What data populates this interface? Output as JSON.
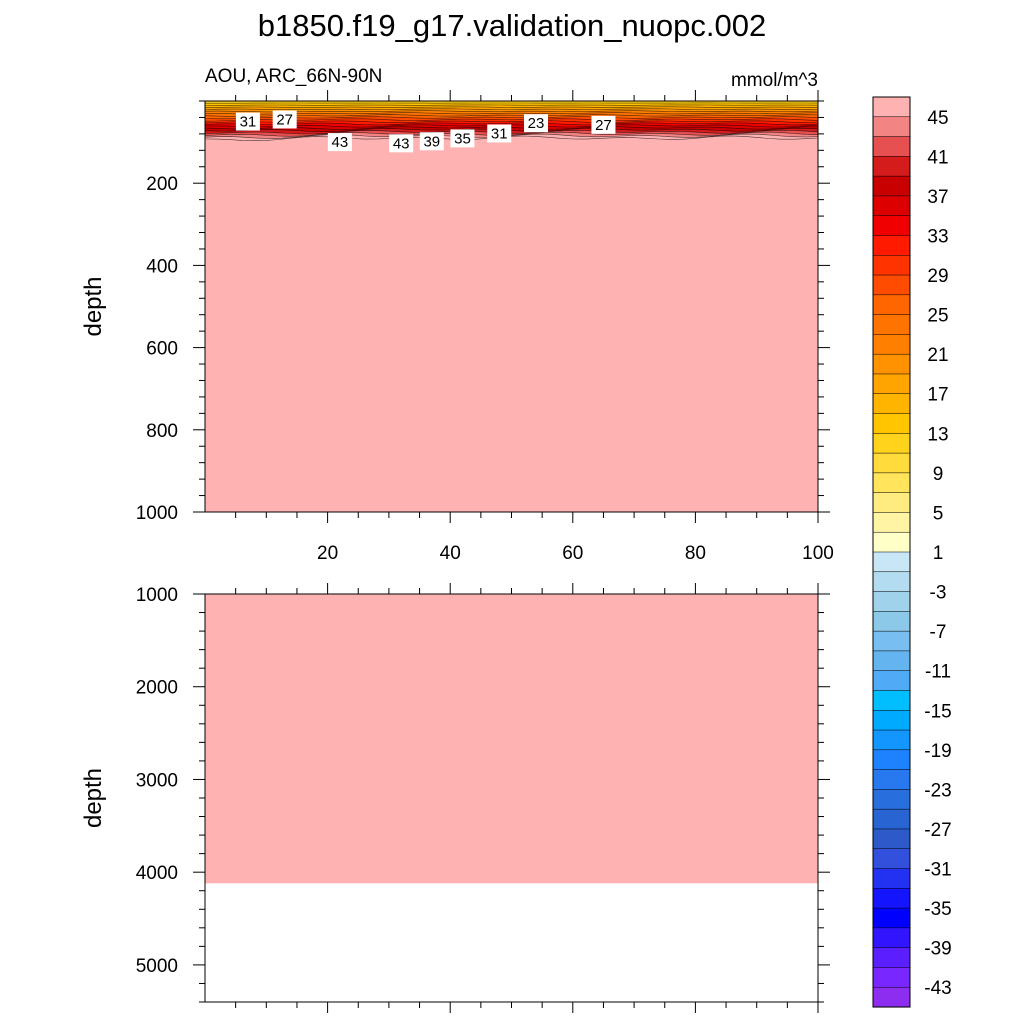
{
  "title": "b1850.f19_g17.validation_nuopc.002",
  "variable_label": "AOU, ARC_66N-90N",
  "units_label": "mmol/m^3",
  "chart_data": [
    {
      "type": "heatmap",
      "panel": "upper",
      "ylabel": "depth",
      "xlim": [
        0,
        100
      ],
      "ylim": [
        1000,
        0
      ],
      "xticks": [
        20,
        40,
        60,
        80,
        100
      ],
      "yticks": [
        200,
        400,
        600,
        800,
        1000
      ],
      "contour_labels": [
        {
          "text": "31",
          "x": 7,
          "depth": 50
        },
        {
          "text": "27",
          "x": 13,
          "depth": 45
        },
        {
          "text": "43",
          "x": 22,
          "depth": 100
        },
        {
          "text": "43",
          "x": 32,
          "depth": 103
        },
        {
          "text": "39",
          "x": 37,
          "depth": 98
        },
        {
          "text": "35",
          "x": 42,
          "depth": 91
        },
        {
          "text": "31",
          "x": 48,
          "depth": 79
        },
        {
          "text": "23",
          "x": 54,
          "depth": 54
        },
        {
          "text": "27",
          "x": 65,
          "depth": 58
        }
      ],
      "surface_gradient": {
        "fill_start": 10,
        "fill_end": 46,
        "mixed_layer_bottom_depth": 90
      }
    },
    {
      "type": "heatmap",
      "panel": "lower",
      "ylabel": "depth",
      "xlim": [
        0,
        100
      ],
      "ylim": [
        5400,
        1000
      ],
      "xticks": [
        20,
        40,
        60,
        80,
        100
      ],
      "yticks": [
        1000,
        2000,
        3000,
        4000,
        5000
      ],
      "bottom_depth": 4120
    }
  ],
  "colorbar": {
    "labels": [
      "45",
      "41",
      "37",
      "33",
      "29",
      "25",
      "21",
      "17",
      "13",
      "9",
      "5",
      "1",
      "-3",
      "-7",
      "-11",
      "-15",
      "-19",
      "-23",
      "-27",
      "-31",
      "-35",
      "-39",
      "-43"
    ],
    "colors": [
      "#ffb2b2",
      "#f28484",
      "#e65050",
      "#d41c1c",
      "#c80000",
      "#dc0000",
      "#f00000",
      "#ff1a00",
      "#ff3300",
      "#ff4c00",
      "#ff6600",
      "#ff7300",
      "#ff8000",
      "#ff9200",
      "#ffa400",
      "#ffb400",
      "#ffc500",
      "#ffd21c",
      "#ffdc3c",
      "#ffe45c",
      "#ffec80",
      "#fff4a4",
      "#ffffc8",
      "#c8e6f5",
      "#b4dcf0",
      "#a0d2ec",
      "#8cc8e8",
      "#78bef0",
      "#64b4f0",
      "#50aaf5",
      "#00beff",
      "#00aaff",
      "#1496ff",
      "#1e82ff",
      "#2878f0",
      "#286edc",
      "#2864d2",
      "#2d5ac8",
      "#3250dc",
      "#2332f0",
      "#1414ff",
      "#0000ff",
      "#3214ff",
      "#5a1eff",
      "#7828ff",
      "#8c2df0"
    ]
  }
}
